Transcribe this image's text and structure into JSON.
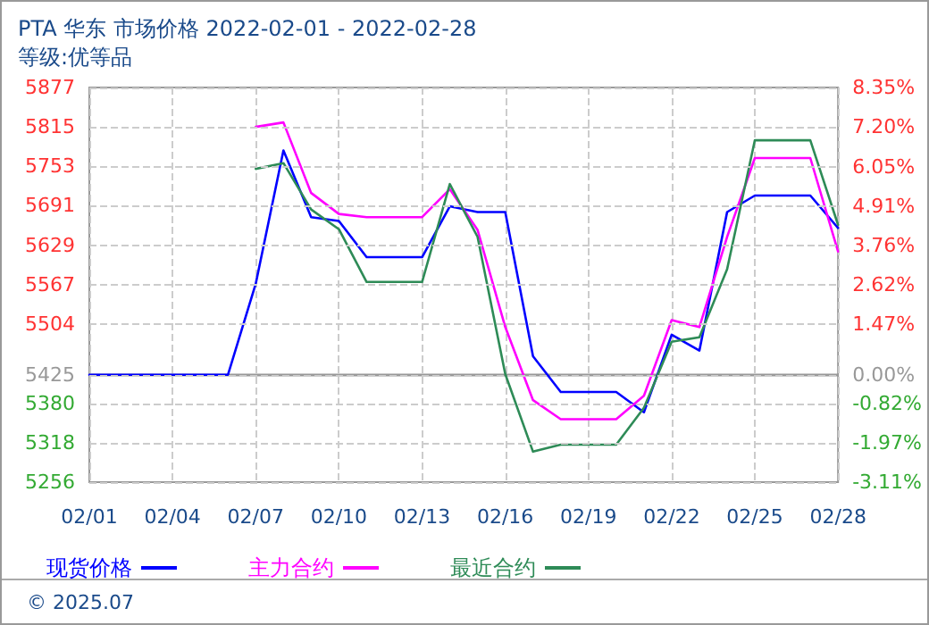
{
  "chart_data": {
    "type": "line",
    "title": "PTA 华东 市场价格 2022-02-01 - 2022-02-28",
    "subtitle": "等级:优等品",
    "categories": [
      "02/01",
      null,
      null,
      "02/04",
      null,
      null,
      "02/07",
      null,
      null,
      "02/10",
      null,
      null,
      "02/13",
      null,
      null,
      "02/16",
      null,
      null,
      "02/19",
      null,
      null,
      "02/22",
      null,
      null,
      "02/25",
      null,
      null,
      "02/28"
    ],
    "series": [
      {
        "name": "现货价格",
        "color": "#0000ff",
        "values": [
          5425,
          5425,
          5425,
          5425,
          5425,
          5425,
          5568,
          5778,
          5673,
          5667,
          5610,
          5610,
          5610,
          5690,
          5681,
          5681,
          5454,
          5398,
          5398,
          5398,
          5366,
          5488,
          5463,
          5681,
          5707,
          5707,
          5707,
          5656
        ]
      },
      {
        "name": "主力合约",
        "color": "#ff00ff",
        "values": [
          null,
          null,
          null,
          null,
          null,
          null,
          5815,
          5822,
          5711,
          5678,
          5673,
          5673,
          5673,
          5717,
          5653,
          5500,
          5385,
          5355,
          5355,
          5355,
          5392,
          5511,
          5500,
          5642,
          5766,
          5766,
          5766,
          5619
        ]
      },
      {
        "name": "最近合约",
        "color": "#2e8b57",
        "values": [
          null,
          null,
          null,
          null,
          null,
          null,
          5749,
          5758,
          5685,
          5654,
          5571,
          5571,
          5571,
          5725,
          5642,
          5426,
          5304,
          5315,
          5315,
          5315,
          5373,
          5477,
          5484,
          5591,
          5794,
          5794,
          5794,
          5661
        ]
      }
    ],
    "ylim": [
      5256,
      5877
    ],
    "yticks": [
      5256,
      5318,
      5380,
      5425,
      5504,
      5567,
      5629,
      5691,
      5753,
      5815,
      5877
    ],
    "y2lim": [
      -3.11,
      8.35
    ],
    "y2ticks": [
      {
        "value": -3.11,
        "label": "-3.11%"
      },
      {
        "value": -1.97,
        "label": "-1.97%"
      },
      {
        "value": -0.82,
        "label": "-0.82%"
      },
      {
        "value": 0,
        "label": "0.00%"
      },
      {
        "value": 1.47,
        "label": "1.47%"
      },
      {
        "value": 2.62,
        "label": "2.62%"
      },
      {
        "value": 3.76,
        "label": "3.76%"
      },
      {
        "value": 4.91,
        "label": "4.91%"
      },
      {
        "value": 6.05,
        "label": "6.05%"
      },
      {
        "value": 7.2,
        "label": "7.20%"
      },
      {
        "value": 8.35,
        "label": "8.35%"
      }
    ],
    "ref_lines": [
      {
        "axis": "y",
        "value": 5425,
        "color": "#999999"
      }
    ],
    "annotations": [
      "© 2025.07"
    ],
    "grid": true,
    "legend": "bottom",
    "marker": "none",
    "line_style": "solid"
  }
}
